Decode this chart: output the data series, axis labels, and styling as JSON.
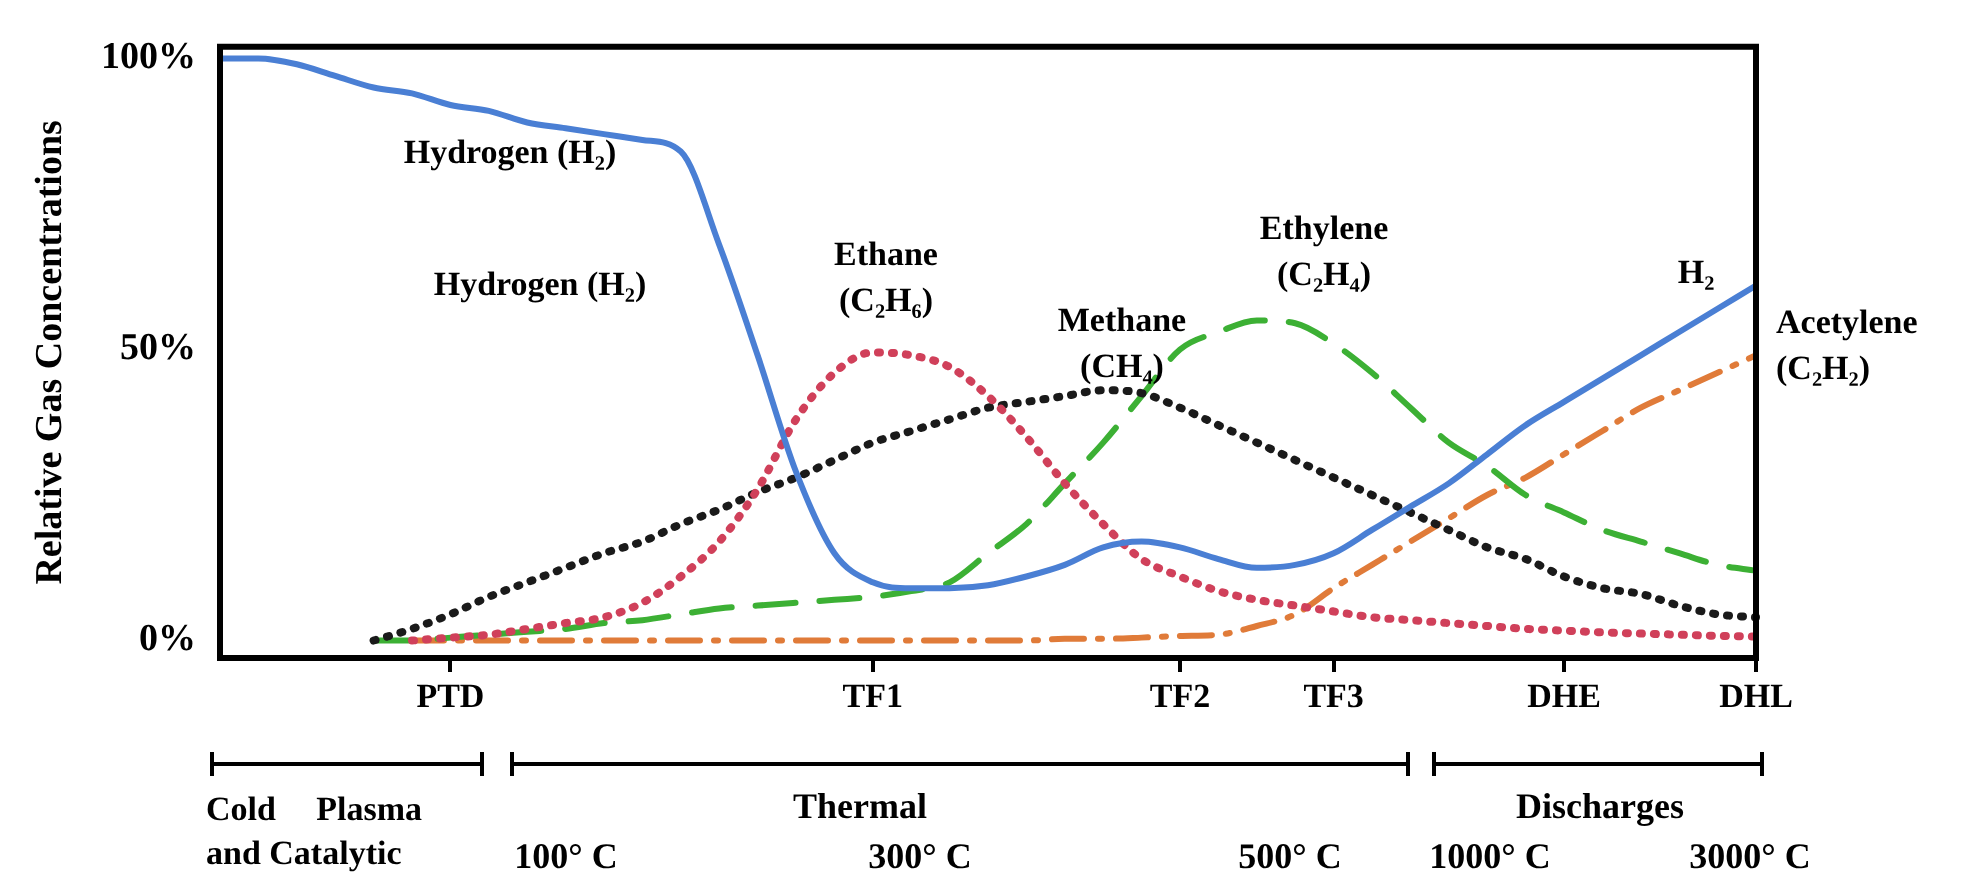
{
  "chart_data": {
    "type": "line",
    "ylabel": "Relative Gas Concentrations",
    "categories": [
      null,
      null,
      null,
      null,
      null,
      null,
      "PTD",
      null,
      null,
      null,
      null,
      null,
      null,
      null,
      null,
      null,
      null,
      "TF1",
      null,
      null,
      null,
      null,
      null,
      null,
      null,
      "TF2",
      null,
      null,
      null,
      "TF3",
      null,
      null,
      null,
      null,
      null,
      "DHE",
      null,
      null,
      null,
      null,
      "DHL"
    ],
    "ylim": [
      -3,
      102
    ],
    "yticks": [
      {
        "value": 0,
        "label": "0%"
      },
      {
        "value": 50,
        "label": "50%"
      },
      {
        "value": 100,
        "label": "100%"
      }
    ],
    "legend": false,
    "series": [
      {
        "name": "Hydrogen (H₂)",
        "color": "#4a7fd4",
        "line_style": "solid",
        "values": [
          100,
          100,
          99,
          97,
          95,
          94,
          92,
          91,
          89,
          88,
          87,
          86,
          84,
          68,
          49,
          29,
          15,
          10,
          9,
          9,
          9.5,
          11,
          13,
          16,
          17,
          16,
          14,
          12.5,
          13,
          15,
          19,
          23,
          27,
          32,
          37,
          41,
          45,
          49,
          53,
          57,
          61
        ]
      },
      {
        "name": "Ethane (C₂H₆)",
        "color": "#d0405a",
        "line_style": "dotted",
        "values": [
          null,
          null,
          null,
          null,
          null,
          0,
          0.5,
          1,
          2,
          3,
          4,
          6.5,
          11,
          17,
          26,
          38,
          46,
          49.5,
          49,
          47,
          42,
          35,
          27,
          20,
          14,
          11,
          8.5,
          7,
          6,
          5,
          4,
          3.5,
          3,
          2.5,
          2,
          1.7,
          1.4,
          1.2,
          1,
          0.8,
          0.7
        ]
      },
      {
        "name": "Methane (CH₄)",
        "color": "#1a1a1a",
        "line_style": "dotted",
        "values": [
          null,
          null,
          null,
          null,
          0,
          2,
          4.5,
          7.5,
          10,
          12.5,
          15,
          17,
          20,
          22.5,
          25.5,
          28,
          31,
          34,
          36,
          38,
          40,
          41,
          42,
          43,
          42.5,
          40,
          37,
          34,
          31,
          28,
          25,
          22,
          19,
          16,
          14,
          11,
          9,
          8,
          6,
          4.5,
          4
        ]
      },
      {
        "name": "Ethylene (C₂H₄)",
        "color": "#3cb034",
        "line_style": "dashed",
        "values": [
          null,
          null,
          null,
          null,
          0,
          0,
          0.5,
          1,
          1.5,
          2,
          3,
          3.5,
          4.5,
          5.5,
          6,
          6.5,
          7,
          7.5,
          8.5,
          10,
          15,
          20,
          27,
          34,
          42,
          50,
          53,
          55,
          54.5,
          51,
          46,
          40,
          34,
          30,
          25,
          22,
          19,
          17,
          15,
          13,
          12
        ]
      },
      {
        "name": "Acetylene (C₂H₂)",
        "color": "#e07b39",
        "line_style": "dashdot",
        "values": [
          null,
          null,
          null,
          null,
          null,
          0,
          0,
          0,
          0,
          0,
          0,
          0,
          0,
          0,
          0,
          0,
          0,
          0,
          0,
          0,
          0,
          0,
          0.3,
          0.3,
          0.5,
          0.8,
          1,
          2.5,
          4.5,
          9,
          13,
          17,
          21,
          25,
          28,
          32,
          36,
          40,
          43,
          46,
          49
        ]
      }
    ],
    "annotations": [
      "Hydrogen (H₂)",
      "H₂",
      "Cold Plasma and Catalytic",
      "Thermal",
      "Discharges",
      "100° C",
      "300° C",
      "500° C",
      "1000° C",
      "3000° C"
    ]
  }
}
